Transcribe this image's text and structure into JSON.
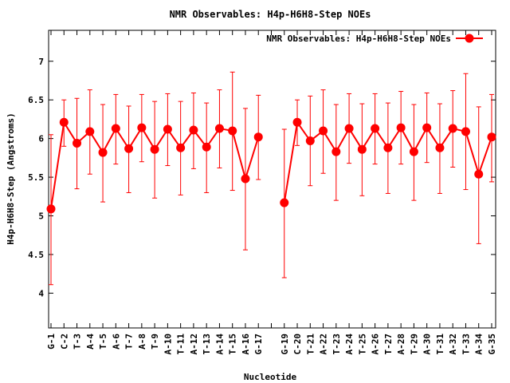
{
  "chart_data": {
    "type": "line",
    "title": "NMR Observables: H4p-H6H8-Step NOEs",
    "xlabel": "Nucleotide",
    "ylabel": "H4p-H6H8-Step (Angstroms)",
    "ylim": [
      3.55,
      7.4
    ],
    "yticks": [
      "4",
      "4.5",
      "5",
      "5.5",
      "6",
      "6.5",
      "7"
    ],
    "grid": false,
    "legend_placement": "top-right",
    "categories": [
      "G-1",
      "C-2",
      "T-3",
      "A-4",
      "T-5",
      "A-6",
      "T-7",
      "A-8",
      "T-9",
      "A-10",
      "T-11",
      "A-12",
      "T-13",
      "A-14",
      "T-15",
      "A-16",
      "G-17",
      "",
      "G-19",
      "C-20",
      "T-21",
      "A-22",
      "T-23",
      "A-24",
      "T-25",
      "A-26",
      "T-27",
      "A-28",
      "T-29",
      "A-30",
      "T-31",
      "A-32",
      "T-33",
      "A-34",
      "G-35"
    ],
    "series": [
      {
        "name": "NMR Observables: H4p-H6H8-Step NOEs",
        "color": "#ff0000",
        "values": [
          5.09,
          6.21,
          5.94,
          6.09,
          5.82,
          6.13,
          5.87,
          6.14,
          5.86,
          6.12,
          5.88,
          6.11,
          5.89,
          6.13,
          6.1,
          5.48,
          6.02,
          null,
          5.17,
          6.21,
          5.97,
          6.1,
          5.83,
          6.13,
          5.86,
          6.13,
          5.88,
          6.14,
          5.83,
          6.14,
          5.88,
          6.13,
          6.09,
          5.54,
          6.02
        ],
        "err_low": [
          4.11,
          5.9,
          5.35,
          5.54,
          5.18,
          5.67,
          5.3,
          5.7,
          5.23,
          5.65,
          5.27,
          5.61,
          5.3,
          5.62,
          5.33,
          4.56,
          5.47,
          null,
          4.2,
          5.91,
          5.39,
          5.55,
          5.2,
          5.68,
          5.26,
          5.67,
          5.29,
          5.67,
          5.2,
          5.69,
          5.29,
          5.63,
          5.34,
          4.64,
          5.44
        ],
        "err_high": [
          6.05,
          6.5,
          6.52,
          6.63,
          6.44,
          6.57,
          6.42,
          6.57,
          6.48,
          6.58,
          6.48,
          6.59,
          6.46,
          6.63,
          6.86,
          6.39,
          6.56,
          null,
          6.12,
          6.5,
          6.55,
          6.63,
          6.44,
          6.58,
          6.45,
          6.58,
          6.46,
          6.61,
          6.44,
          6.59,
          6.45,
          6.62,
          6.84,
          6.41,
          6.57
        ]
      }
    ]
  }
}
